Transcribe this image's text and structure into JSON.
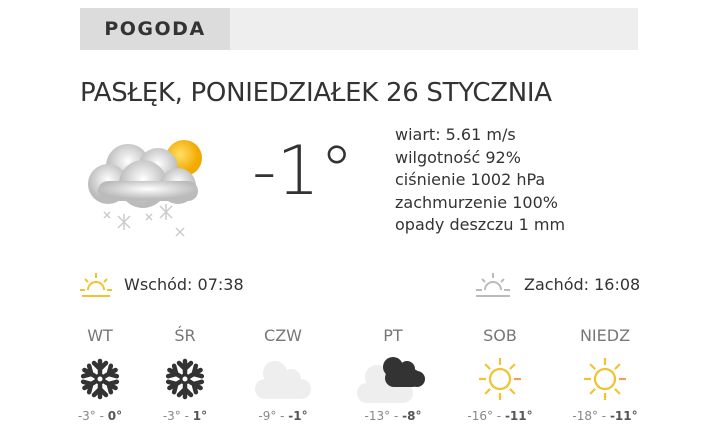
{
  "header": {
    "label": "POGODA"
  },
  "title": "PASŁĘK, PONIEDZIAŁEK 26 STYCZNIA",
  "current": {
    "icon": "cloud-snow-sun-icon",
    "temp": "-1°",
    "details": [
      "wiart: 5.61 m/s",
      "wilgotność 92%",
      "ciśnienie 1002 hPa",
      "zachmurzenie 100%",
      "opady deszczu 1 mm"
    ]
  },
  "sunrise": {
    "label": "Wschód: 07:38",
    "color": "#f2c230"
  },
  "sunset": {
    "label": "Zachód: 16:08",
    "color": "#bbbbbb"
  },
  "forecast": [
    {
      "day": "WT",
      "icon": "snowflake-icon",
      "min": "-3° - ",
      "max": "0°"
    },
    {
      "day": "ŚR",
      "icon": "snowflake-icon",
      "min": "-3° - ",
      "max": "1°"
    },
    {
      "day": "CZW",
      "icon": "cloud-icon",
      "min": "-9° - ",
      "max": "-1°"
    },
    {
      "day": "PT",
      "icon": "cloud-dark-cloud-icon",
      "min": "-13° - ",
      "max": "-8°"
    },
    {
      "day": "SOB",
      "icon": "sun-icon",
      "min": "-16° - ",
      "max": "-11°"
    },
    {
      "day": "NIEDZ",
      "icon": "sun-icon",
      "min": "-18° - ",
      "max": "-11°"
    }
  ]
}
